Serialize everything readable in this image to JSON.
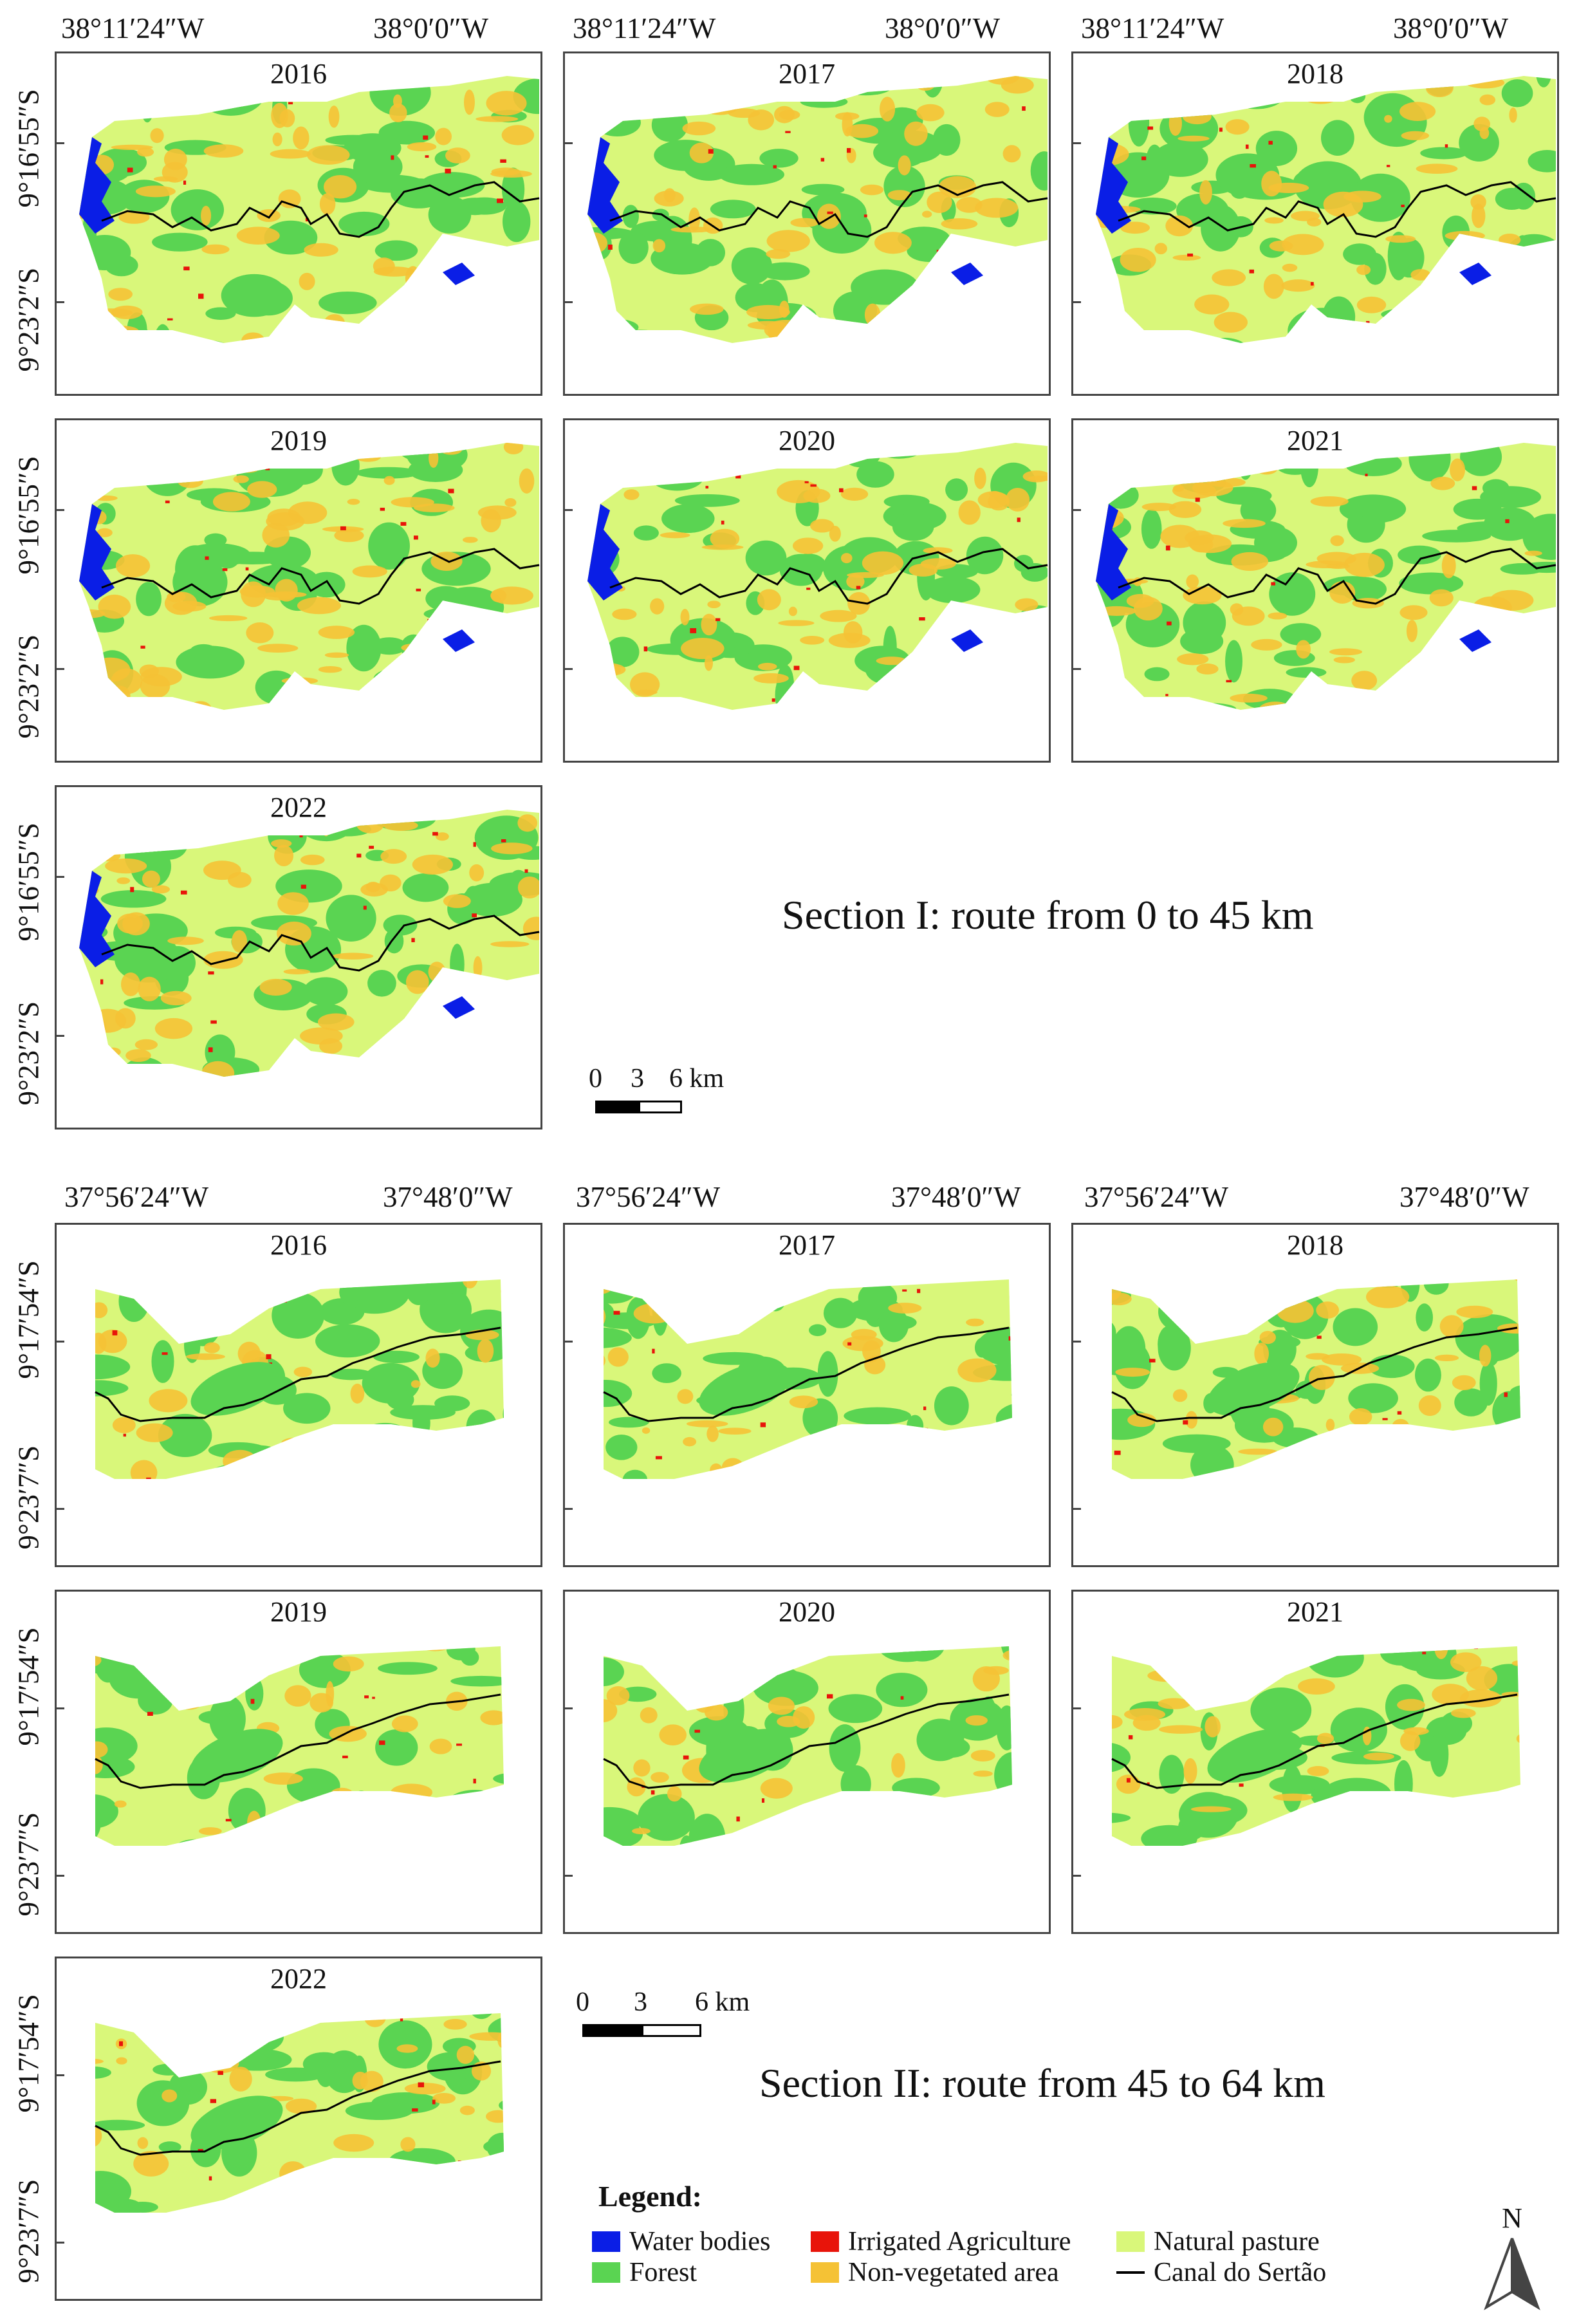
{
  "section1": {
    "title": "Section I: route from 0 to 45 km",
    "lon_labels": [
      "38°11′24″W",
      "38°0′0″W"
    ],
    "lat_labels": [
      "9°16′55″S",
      "9°23′2″S"
    ],
    "years": [
      "2016",
      "2017",
      "2018",
      "2019",
      "2020",
      "2021",
      "2022"
    ],
    "scale": {
      "l0": "0",
      "l1": "3",
      "l2": "6 km"
    }
  },
  "section2": {
    "title": "Section II: route from 45 to 64 km",
    "lon_labels": [
      "37°56′24″W",
      "37°48′0″W"
    ],
    "lat_labels": [
      "9°17′54″S",
      "9°23′7″S"
    ],
    "years": [
      "2016",
      "2017",
      "2018",
      "2019",
      "2020",
      "2021",
      "2022"
    ],
    "scale": {
      "l0": "0",
      "l1": "3",
      "l2": "6 km"
    }
  },
  "legend": {
    "title": "Legend:",
    "items": [
      {
        "label": "Water bodies",
        "color": "#0a1ee6"
      },
      {
        "label": "Irrigated Agriculture",
        "color": "#e8140a"
      },
      {
        "label": "Natural pasture",
        "color": "#d9f77a"
      },
      {
        "label": "Forest",
        "color": "#5ad452"
      },
      {
        "label": "Non-vegetated area",
        "color": "#f5c235"
      },
      {
        "label": "Canal do Sertão",
        "color": "#000000"
      }
    ]
  },
  "north_arrow": {
    "label": "N",
    "icon": "north-arrow-icon"
  }
}
